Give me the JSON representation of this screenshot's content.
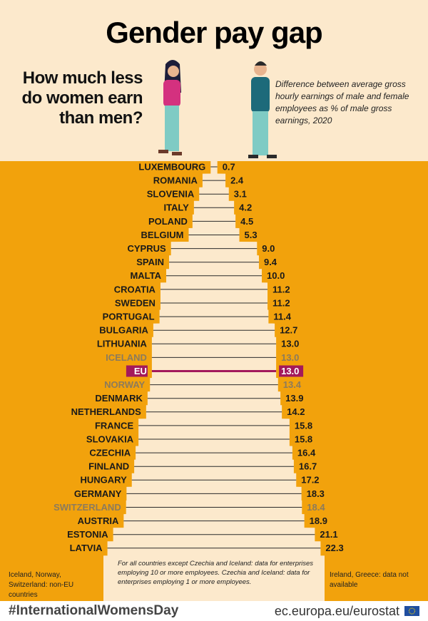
{
  "chart_data": {
    "type": "gap",
    "title": "Gender pay gap",
    "subtitle": "How much less do women earn than men?",
    "description": "Difference between average gross hourly earnings of male and female employees as % of male gross earnings, 2020",
    "categories": [
      "LUXEMBOURG",
      "ROMANIA",
      "SLOVENIA",
      "ITALY",
      "POLAND",
      "BELGIUM",
      "CYPRUS",
      "SPAIN",
      "MALTA",
      "CROATIA",
      "SWEDEN",
      "PORTUGAL",
      "BULGARIA",
      "LITHUANIA",
      "ICELAND",
      "EU",
      "NORWAY",
      "DENMARK",
      "NETHERLANDS",
      "FRANCE",
      "SLOVAKIA",
      "CZECHIA",
      "FINLAND",
      "HUNGARY",
      "GERMANY",
      "SWITZERLAND",
      "AUSTRIA",
      "ESTONIA",
      "LATVIA"
    ],
    "values": [
      0.7,
      2.4,
      3.1,
      4.2,
      4.5,
      5.3,
      9.0,
      9.4,
      10.0,
      11.2,
      11.2,
      11.4,
      12.7,
      13.0,
      13.0,
      13.0,
      13.4,
      13.9,
      14.2,
      15.8,
      15.8,
      16.4,
      16.7,
      17.2,
      18.3,
      18.4,
      18.9,
      21.1,
      22.3
    ],
    "value_labels": [
      "0.7",
      "2.4",
      "3.1",
      "4.2",
      "4.5",
      "5.3",
      "9.0",
      "9.4",
      "10.0",
      "11.2",
      "11.2",
      "11.4",
      "12.7",
      "13.0",
      "13.0",
      "13.0",
      "13.4",
      "13.9",
      "14.2",
      "15.8",
      "15.8",
      "16.4",
      "16.7",
      "17.2",
      "18.3",
      "18.4",
      "18.9",
      "21.1",
      "22.3"
    ],
    "row_styles": [
      "normal",
      "normal",
      "normal",
      "normal",
      "normal",
      "normal",
      "normal",
      "normal",
      "normal",
      "normal",
      "normal",
      "normal",
      "normal",
      "normal",
      "non-eu",
      "highlight",
      "non-eu",
      "normal",
      "normal",
      "normal",
      "normal",
      "normal",
      "normal",
      "normal",
      "normal",
      "non-eu",
      "normal",
      "normal",
      "normal"
    ],
    "style_colors": {
      "normal": "#1a1a1a",
      "non-eu": "#8c7b5c",
      "highlight": "#a3195b"
    },
    "background_color": "#f2a20c",
    "shape_color": "#fce9cc",
    "footnote_left": "Iceland, Norway, Switzerland: non-EU countries",
    "footnote_center": "For all countries except Czechia and Iceland: data for enterprises employing 10 or more employees. Czechia and Iceland: data for enterprises employing 1 or more employees.",
    "footnote_right": "Ireland, Greece: data not available",
    "hashtag": "#InternationalWomensDay",
    "source": "ec.europa.eu/eurostat"
  }
}
